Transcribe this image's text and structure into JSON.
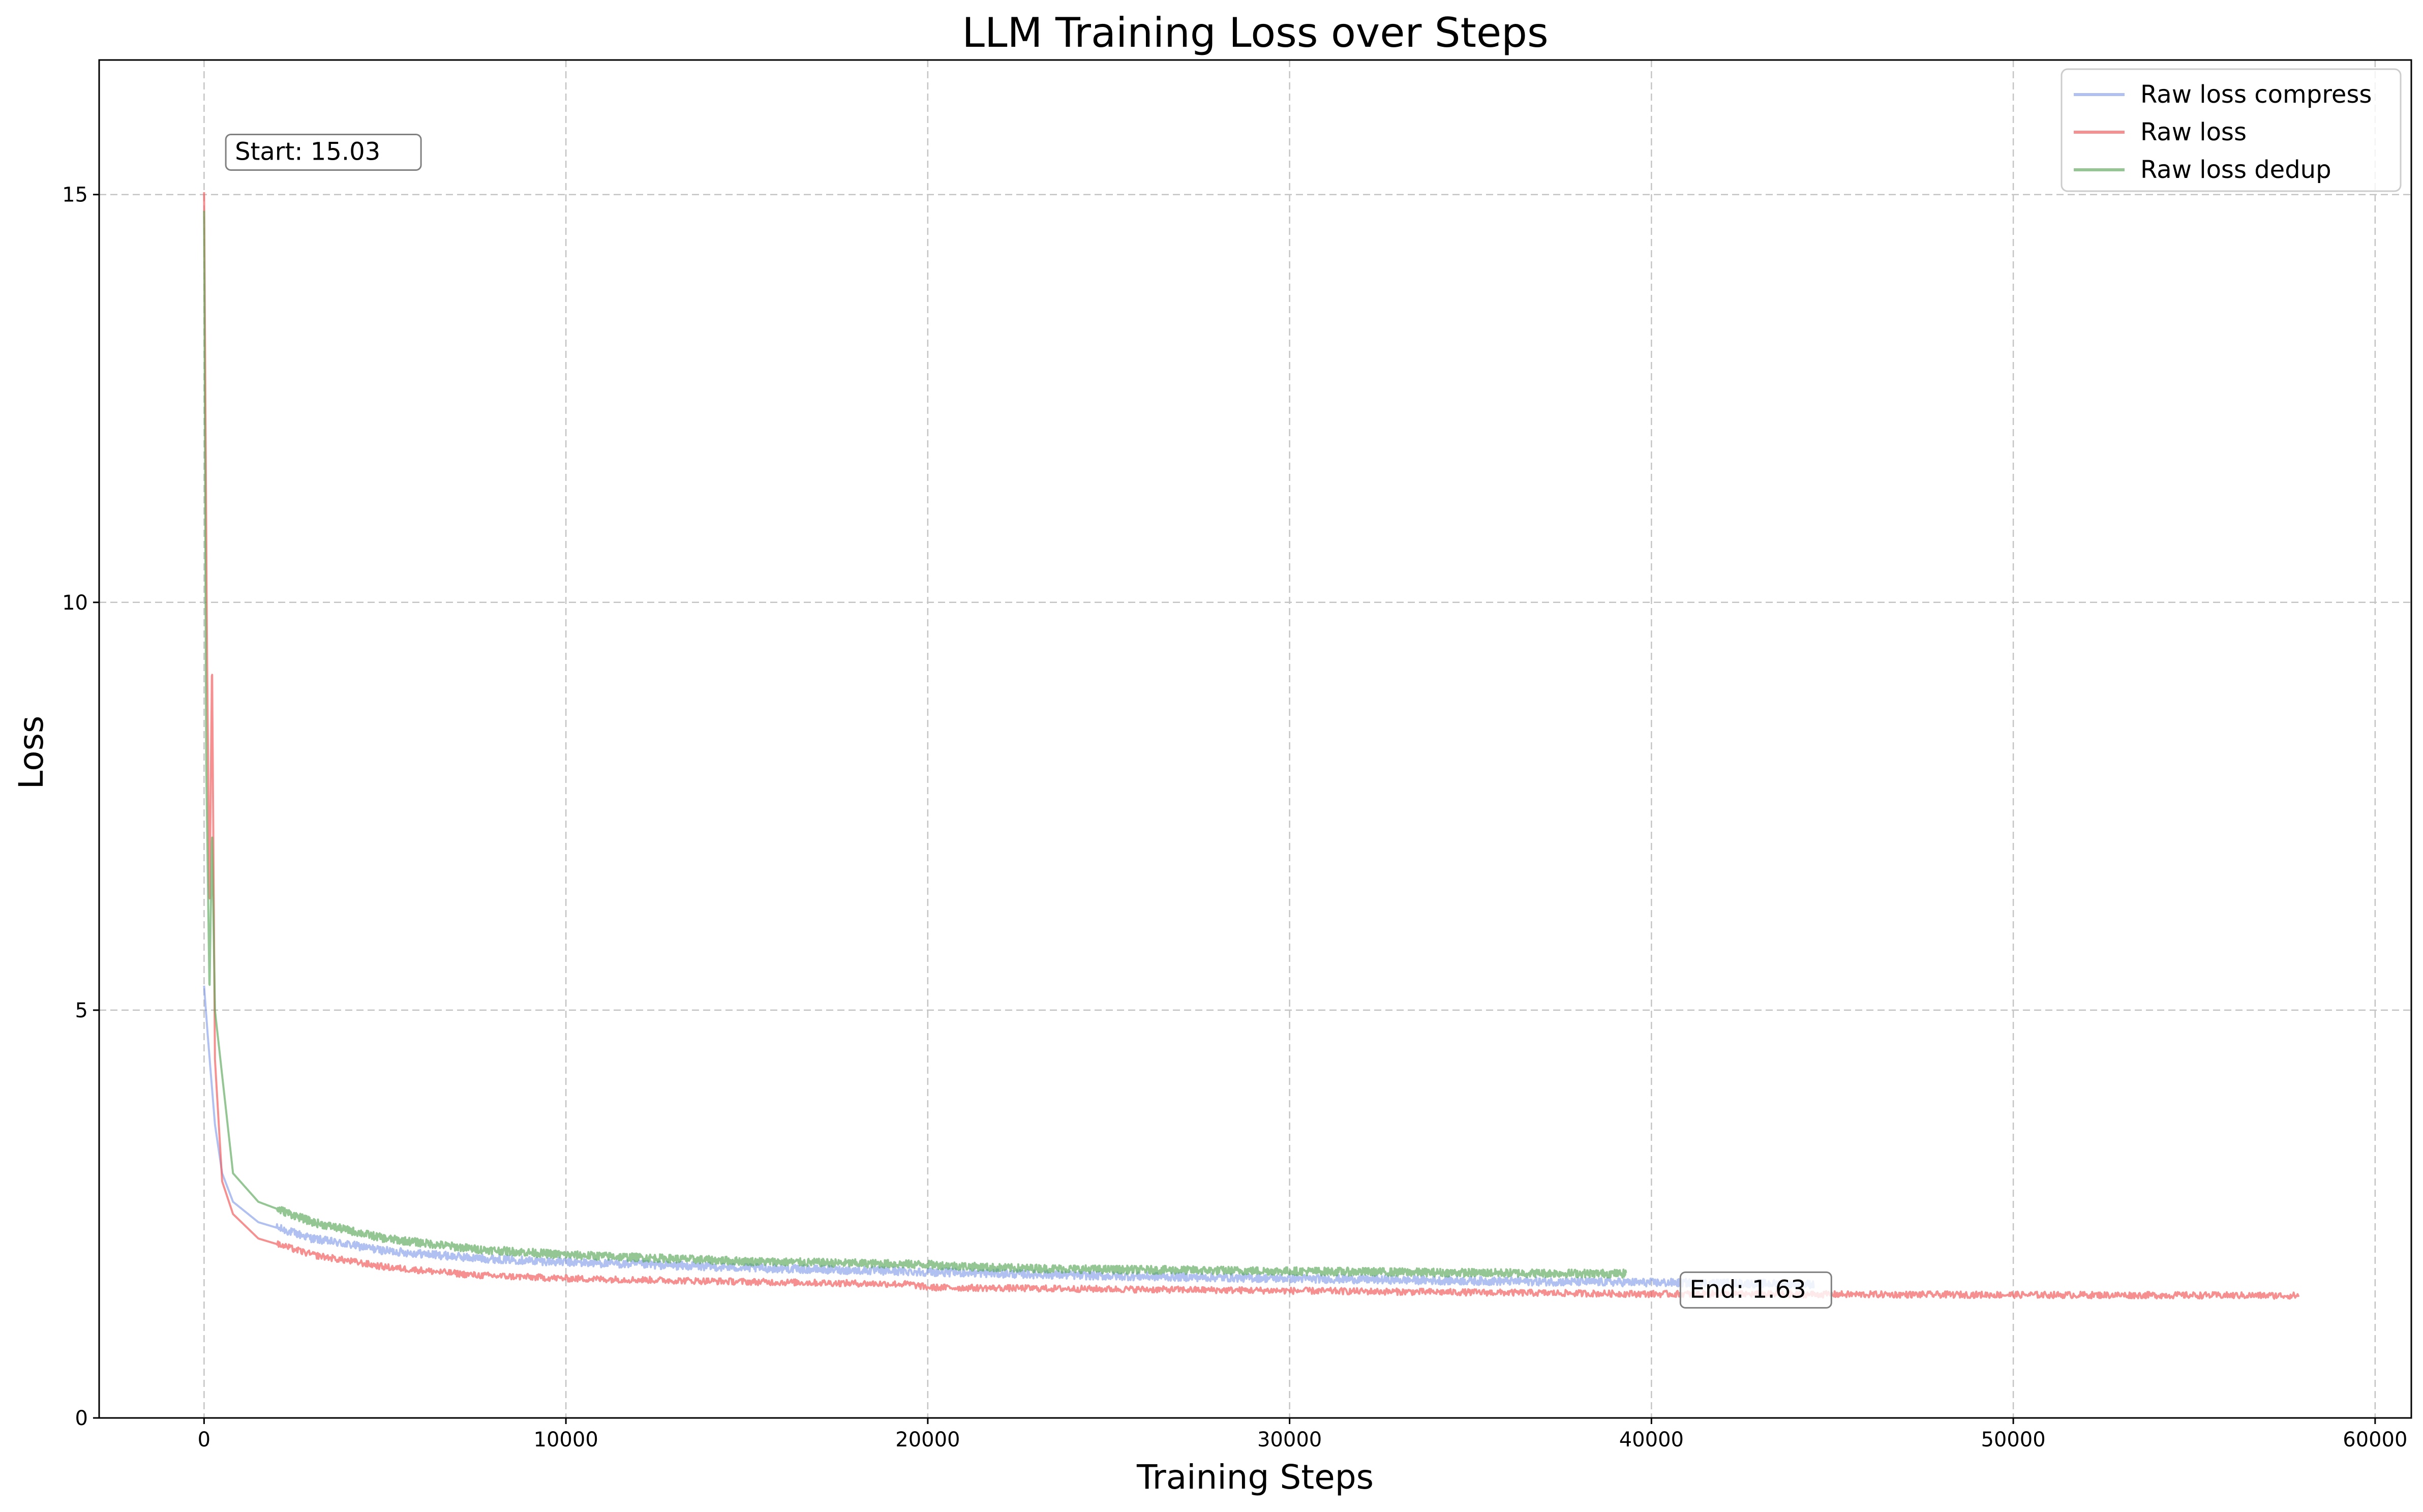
{
  "chart_data": {
    "type": "line",
    "title": "LLM Training Loss over Steps",
    "xlabel": "Training Steps",
    "ylabel": "Loss",
    "xlim": [
      -2900,
      61000
    ],
    "ylim": [
      0,
      16.65
    ],
    "x_ticks": [
      {
        "value": 0,
        "label": "0"
      },
      {
        "value": 10000,
        "label": "10000"
      },
      {
        "value": 20000,
        "label": "20000"
      },
      {
        "value": 30000,
        "label": "30000"
      },
      {
        "value": 40000,
        "label": "40000"
      },
      {
        "value": 50000,
        "label": "50000"
      },
      {
        "value": 60000,
        "label": "60000"
      }
    ],
    "y_ticks": [
      {
        "value": 0,
        "label": "0"
      },
      {
        "value": 5,
        "label": "5"
      },
      {
        "value": 10,
        "label": "10"
      },
      {
        "value": 15,
        "label": "15"
      }
    ],
    "grid": true,
    "legend_position": "top-right",
    "series": [
      {
        "name": "Raw loss compress",
        "color": "#7b96e8",
        "opacity": 0.6,
        "noise": 0.05,
        "points": [
          [
            0,
            5.3
          ],
          [
            100,
            4.7
          ],
          [
            300,
            3.6
          ],
          [
            500,
            3.0
          ],
          [
            800,
            2.65
          ],
          [
            1500,
            2.4
          ],
          [
            3000,
            2.2
          ],
          [
            5000,
            2.05
          ],
          [
            7500,
            1.96
          ],
          [
            10000,
            1.91
          ],
          [
            15000,
            1.84
          ],
          [
            20000,
            1.79
          ],
          [
            22000,
            1.77
          ],
          [
            25000,
            1.74
          ],
          [
            30000,
            1.71
          ],
          [
            35000,
            1.68
          ],
          [
            40000,
            1.66
          ],
          [
            44500,
            1.64
          ]
        ]
      },
      {
        "name": "Raw loss",
        "color": "#f26161",
        "opacity": 0.7,
        "noise": 0.04,
        "points": [
          [
            0,
            15.03
          ],
          [
            80,
            9.5
          ],
          [
            150,
            6.2
          ],
          [
            220,
            9.3
          ],
          [
            300,
            4.4
          ],
          [
            500,
            2.9
          ],
          [
            800,
            2.5
          ],
          [
            1500,
            2.2
          ],
          [
            3000,
            2.0
          ],
          [
            5000,
            1.85
          ],
          [
            7500,
            1.75
          ],
          [
            10000,
            1.71
          ],
          [
            15000,
            1.67
          ],
          [
            19500,
            1.64
          ],
          [
            20000,
            1.6
          ],
          [
            25000,
            1.58
          ],
          [
            30000,
            1.56
          ],
          [
            40000,
            1.52
          ],
          [
            50000,
            1.51
          ],
          [
            57900,
            1.5
          ]
        ]
      },
      {
        "name": "Raw loss dedup",
        "color": "#59a859",
        "opacity": 0.65,
        "noise": 0.05,
        "points": [
          [
            0,
            14.8
          ],
          [
            60,
            8.0
          ],
          [
            150,
            5.2
          ],
          [
            220,
            7.2
          ],
          [
            300,
            5.0
          ],
          [
            500,
            4.2
          ],
          [
            800,
            3.0
          ],
          [
            1500,
            2.65
          ],
          [
            3000,
            2.4
          ],
          [
            5000,
            2.2
          ],
          [
            7500,
            2.07
          ],
          [
            10000,
            2.0
          ],
          [
            15000,
            1.92
          ],
          [
            20000,
            1.88
          ],
          [
            22000,
            1.84
          ],
          [
            25000,
            1.82
          ],
          [
            30000,
            1.8
          ],
          [
            35000,
            1.78
          ],
          [
            39300,
            1.77
          ]
        ]
      }
    ],
    "annotations": [
      {
        "text": "Start: 15.03",
        "x": 600,
        "y": 15.4
      },
      {
        "text": "End: 1.63",
        "x": 40800,
        "y": 1.45
      }
    ]
  }
}
